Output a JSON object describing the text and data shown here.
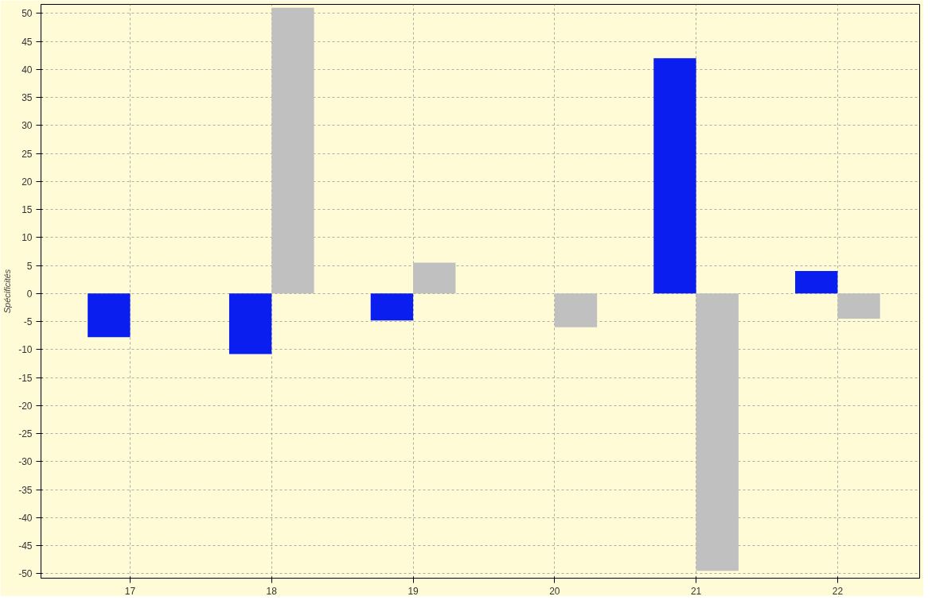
{
  "chart_data": {
    "type": "bar",
    "ylabel": "Spécificités",
    "categories": [
      "17",
      "18",
      "19",
      "20",
      "21",
      "22"
    ],
    "series": [
      {
        "color": "#0a1ef0",
        "values": [
          -7.8,
          -10.8,
          -4.8,
          0,
          42,
          4
        ]
      },
      {
        "color": "#c0c0c0",
        "values": [
          0,
          51,
          5.5,
          -6,
          -49.5,
          -4.5
        ]
      }
    ],
    "ylim": [
      -50.8,
      51.6
    ],
    "yticks": [
      -50,
      -45,
      -40,
      -35,
      -30,
      -25,
      -20,
      -15,
      -10,
      -5,
      0,
      5,
      10,
      15,
      20,
      25,
      30,
      35,
      40,
      45,
      50
    ],
    "grid": true
  }
}
